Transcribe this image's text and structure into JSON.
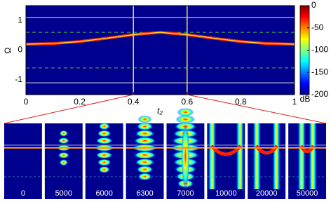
{
  "chart_data": {
    "type": "heatmap",
    "x_label": "t₂",
    "y_label": "Ω",
    "xlim": [
      0,
      1
    ],
    "xticks": [
      0,
      0.2,
      0.4,
      0.6,
      0.8,
      1
    ],
    "ylim": [
      -1.5,
      1.5
    ],
    "yticks": [
      -1,
      0,
      1
    ],
    "colorbar": {
      "label": "dB",
      "clim": [
        -200,
        0
      ],
      "ticks": [
        0,
        -50,
        -100,
        -150,
        -200
      ]
    },
    "vlines": [
      0.4,
      0.6
    ],
    "hlines": [
      1.1,
      -1.1
    ],
    "dashed_hlines": [
      0.6,
      -0.6
    ],
    "curve": {
      "x": [
        0,
        0.1,
        0.2,
        0.3,
        0.4,
        0.5,
        0.6,
        0.7,
        0.8,
        0.9,
        1
      ],
      "values": [
        0.2,
        0.22,
        0.29,
        0.4,
        0.52,
        0.6,
        0.52,
        0.4,
        0.29,
        0.22,
        0.2
      ]
    },
    "insets": {
      "labels": [
        0,
        5000,
        6000,
        6300,
        7000,
        10000,
        20000,
        50000
      ]
    }
  }
}
